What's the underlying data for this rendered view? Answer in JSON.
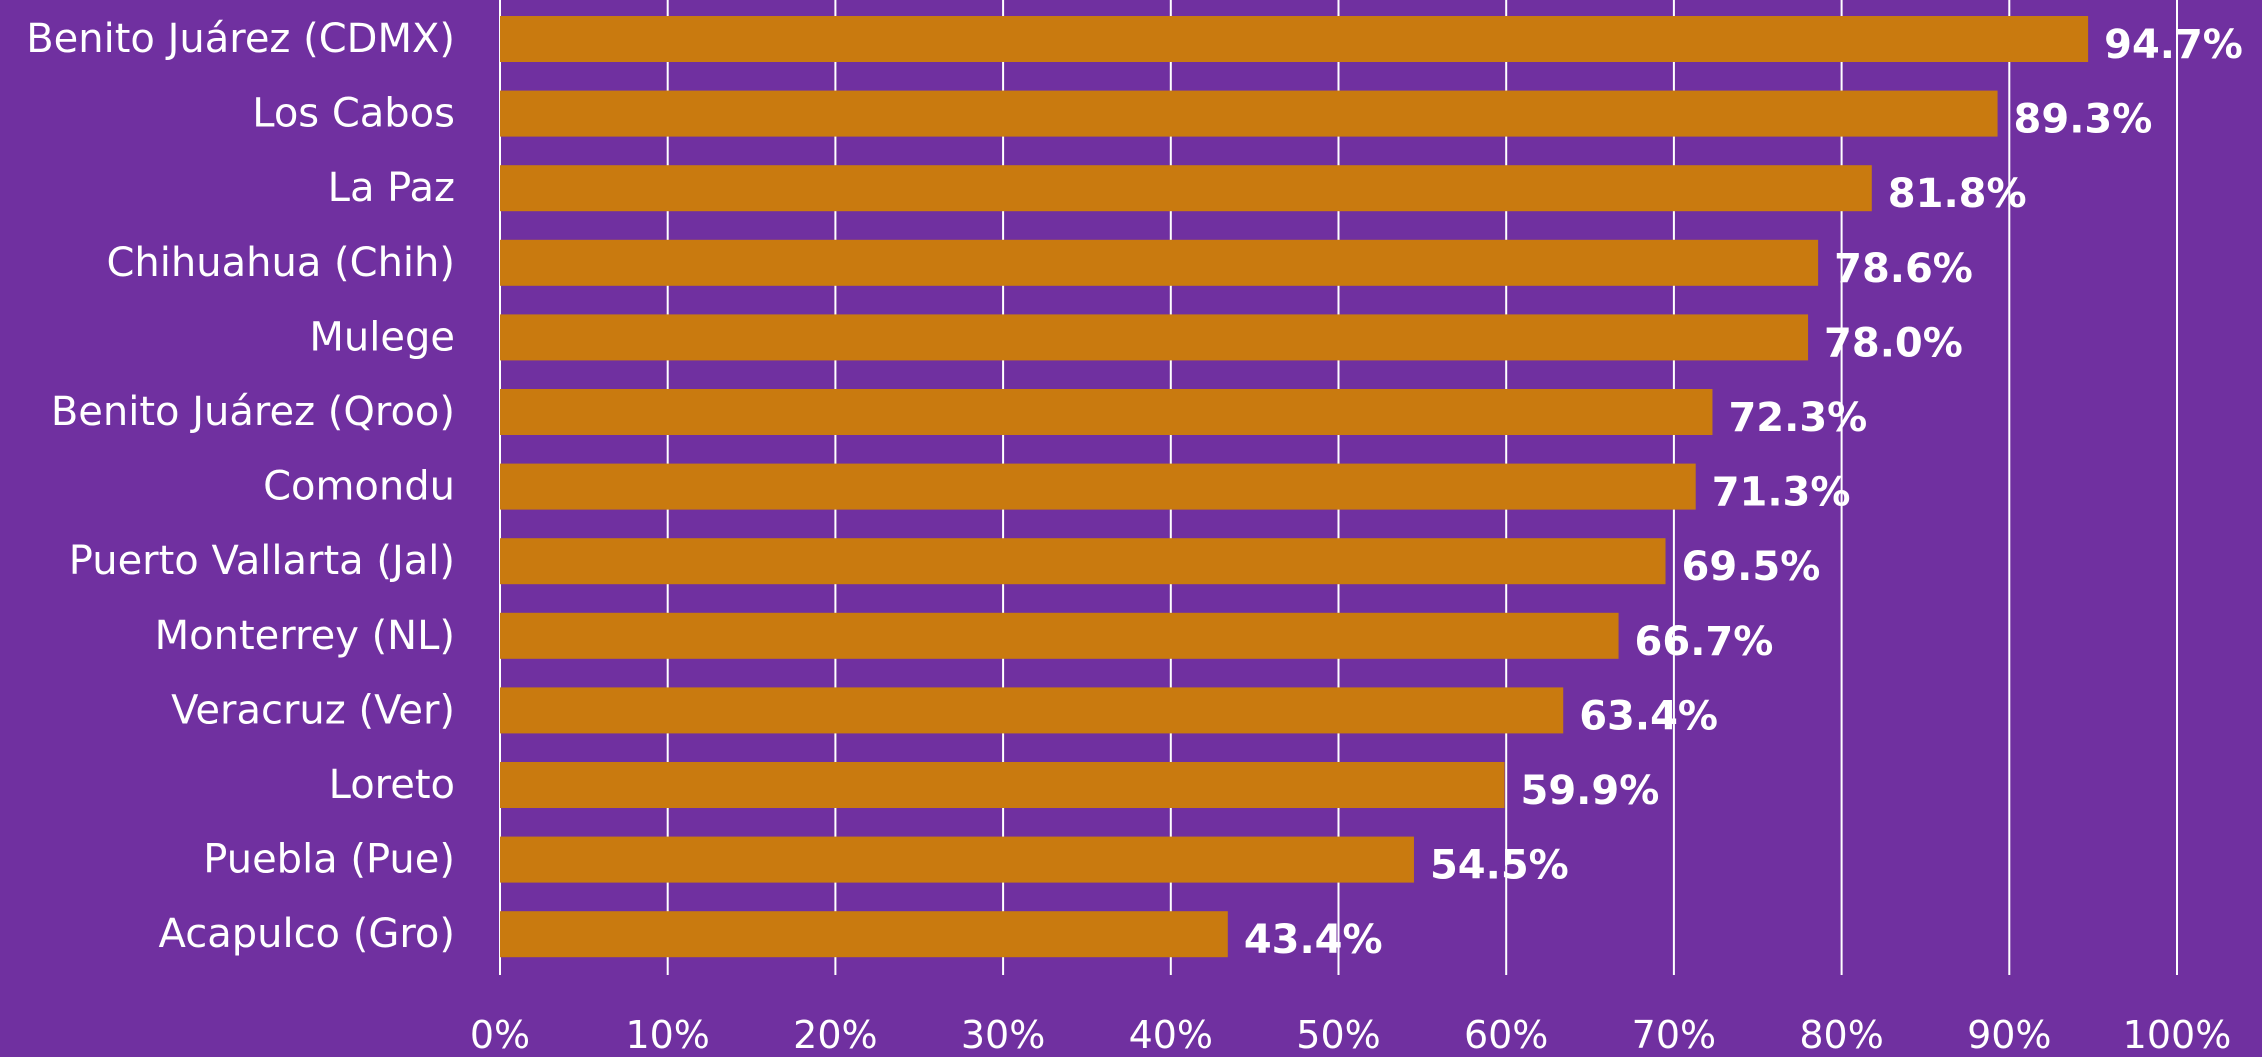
{
  "chart_data": {
    "type": "bar",
    "orientation": "horizontal",
    "categories": [
      "Benito Juárez (CDMX)",
      "Los Cabos",
      "La Paz",
      "Chihuahua (Chih)",
      "Mulege",
      "Benito Juárez (Qroo)",
      "Comondu",
      "Puerto Vallarta (Jal)",
      "Monterrey (NL)",
      "Veracruz (Ver)",
      "Loreto",
      "Puebla (Pue)",
      "Acapulco (Gro)"
    ],
    "values": [
      94.7,
      89.3,
      81.8,
      78.6,
      78.0,
      72.3,
      71.3,
      69.5,
      66.7,
      63.4,
      59.9,
      54.5,
      43.4
    ],
    "value_labels": [
      "94.7%",
      "89.3%",
      "81.8%",
      "78.6%",
      "78.0%",
      "72.3%",
      "71.3%",
      "69.5%",
      "66.7%",
      "63.4%",
      "59.9%",
      "54.5%",
      "43.4%"
    ],
    "xticks": [
      0,
      10,
      20,
      30,
      40,
      50,
      60,
      70,
      80,
      90,
      100
    ],
    "xtick_labels": [
      "0%",
      "10%",
      "20%",
      "30%",
      "40%",
      "50%",
      "60%",
      "70%",
      "80%",
      "90%",
      "100%"
    ],
    "xlim": [
      0,
      100
    ],
    "grid": "vertical",
    "legend": "none",
    "colors": {
      "background": "#7030A0",
      "bar": "#C97A0F",
      "text": "#FFFFFF",
      "grid": "#FFFFFF"
    }
  }
}
